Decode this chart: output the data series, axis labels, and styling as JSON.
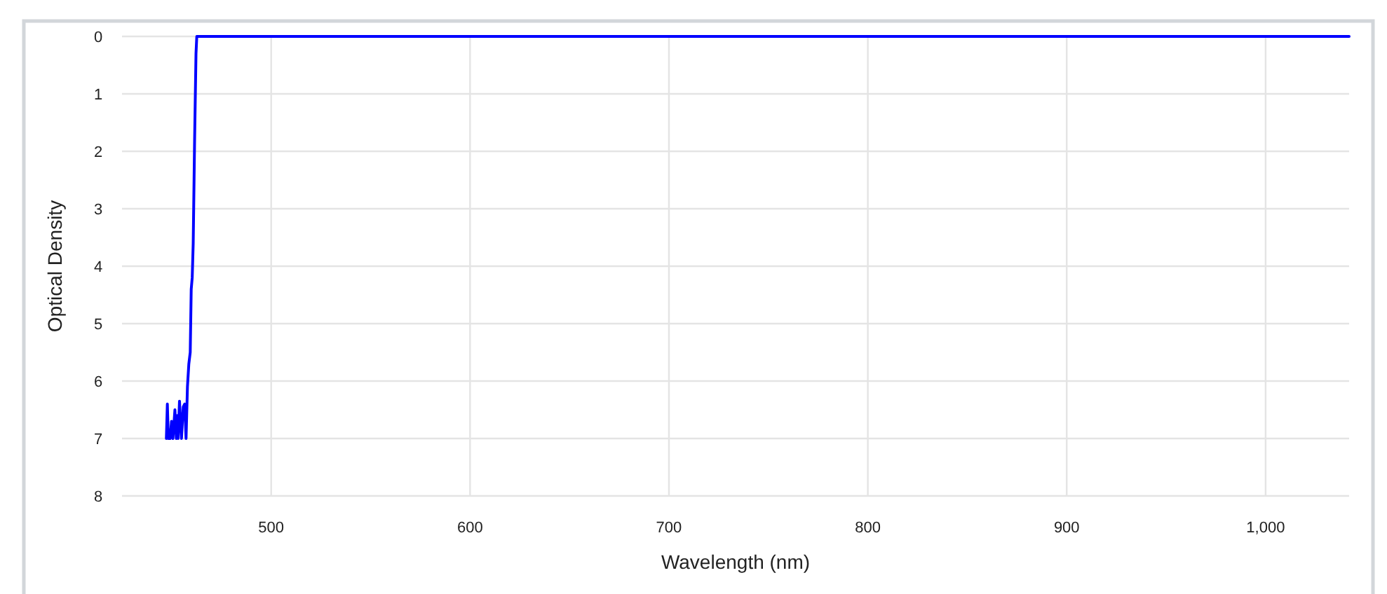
{
  "chart_data": {
    "type": "line",
    "xlabel": "Wavelength (nm)",
    "ylabel": "Optical Density",
    "x": [
      447.3,
      447.8,
      448.3,
      449.2,
      449.9,
      450.6,
      451.6,
      452.3,
      452.8,
      453.2,
      453.9,
      454.9,
      455.8,
      456.5,
      457.2,
      457.9,
      458.6,
      459.3,
      459.8,
      460.3,
      460.8,
      461.5,
      462.2,
      462.6,
      500,
      600,
      700,
      800,
      900,
      1000,
      1042
    ],
    "series": [
      {
        "color": "#0000ff",
        "values": [
          7,
          6.4,
          7,
          7,
          6.7,
          7,
          6.5,
          7,
          6.6,
          7,
          6.35,
          7,
          6.45,
          6.4,
          7,
          6.1,
          5.7,
          5.5,
          4.4,
          4.2,
          3.6,
          1.8,
          0.3,
          0,
          0,
          0,
          0,
          0,
          0,
          0,
          0
        ]
      }
    ],
    "xlim": [
      425,
      1042
    ],
    "ylim": [
      8,
      0
    ],
    "xticks": [
      500,
      600,
      700,
      800,
      900,
      {
        "value": 1000,
        "label": "1,000"
      }
    ],
    "yticks": [
      0,
      1,
      2,
      3,
      4,
      5,
      6,
      7,
      8
    ],
    "grid": true
  }
}
